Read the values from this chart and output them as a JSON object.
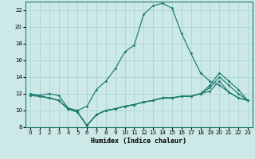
{
  "bg_color": "#cce9e7",
  "line_color": "#1a7a6e",
  "grid_color": "#aad4d0",
  "xlabel": "Humidex (Indice chaleur)",
  "xlim": [
    -0.5,
    23.5
  ],
  "ylim": [
    8,
    23
  ],
  "xticks": [
    0,
    1,
    2,
    3,
    4,
    5,
    6,
    7,
    8,
    9,
    10,
    11,
    12,
    13,
    14,
    15,
    16,
    17,
    18,
    19,
    20,
    21,
    22,
    23
  ],
  "yticks": [
    8,
    10,
    12,
    14,
    16,
    18,
    20,
    22
  ],
  "curves": [
    {
      "x": [
        0,
        1,
        2,
        3,
        4,
        5,
        6,
        7,
        8,
        9,
        10,
        11,
        12,
        13,
        14,
        15,
        16,
        17,
        18,
        19,
        20,
        21,
        22,
        23
      ],
      "y": [
        12,
        11.8,
        12,
        11.8,
        10.3,
        10.0,
        10.5,
        12.5,
        13.5,
        15.0,
        17.0,
        17.8,
        21.5,
        22.5,
        22.8,
        22.2,
        19.2,
        16.8,
        14.5,
        13.5,
        13.0,
        12.2,
        11.5,
        11.2
      ]
    },
    {
      "x": [
        0,
        1,
        2,
        3,
        4,
        5,
        6,
        7,
        8,
        9,
        10,
        11,
        12,
        13,
        14,
        15,
        16,
        17,
        18,
        19,
        20,
        21,
        22,
        23
      ],
      "y": [
        11.8,
        11.7,
        11.5,
        11.2,
        10.2,
        9.8,
        8.2,
        9.5,
        10.0,
        10.2,
        10.5,
        10.7,
        11.0,
        11.2,
        11.5,
        11.5,
        11.7,
        11.7,
        12.0,
        12.3,
        13.5,
        12.2,
        11.5,
        11.2
      ]
    },
    {
      "x": [
        0,
        1,
        2,
        3,
        4,
        5,
        6,
        7,
        8,
        9,
        10,
        11,
        12,
        13,
        14,
        15,
        16,
        17,
        18,
        19,
        20,
        21,
        22,
        23
      ],
      "y": [
        11.8,
        11.7,
        11.5,
        11.2,
        10.2,
        9.8,
        8.2,
        9.5,
        10.0,
        10.2,
        10.5,
        10.7,
        11.0,
        11.2,
        11.5,
        11.5,
        11.7,
        11.7,
        12.0,
        12.7,
        14.0,
        13.0,
        12.0,
        11.2
      ]
    },
    {
      "x": [
        0,
        1,
        2,
        3,
        4,
        5,
        6,
        7,
        8,
        9,
        10,
        11,
        12,
        13,
        14,
        15,
        16,
        17,
        18,
        19,
        20,
        21,
        22,
        23
      ],
      "y": [
        11.8,
        11.7,
        11.5,
        11.2,
        10.2,
        9.8,
        8.2,
        9.5,
        10.0,
        10.2,
        10.5,
        10.7,
        11.0,
        11.2,
        11.5,
        11.5,
        11.7,
        11.7,
        12.0,
        13.0,
        14.5,
        13.5,
        12.5,
        11.2
      ]
    }
  ]
}
